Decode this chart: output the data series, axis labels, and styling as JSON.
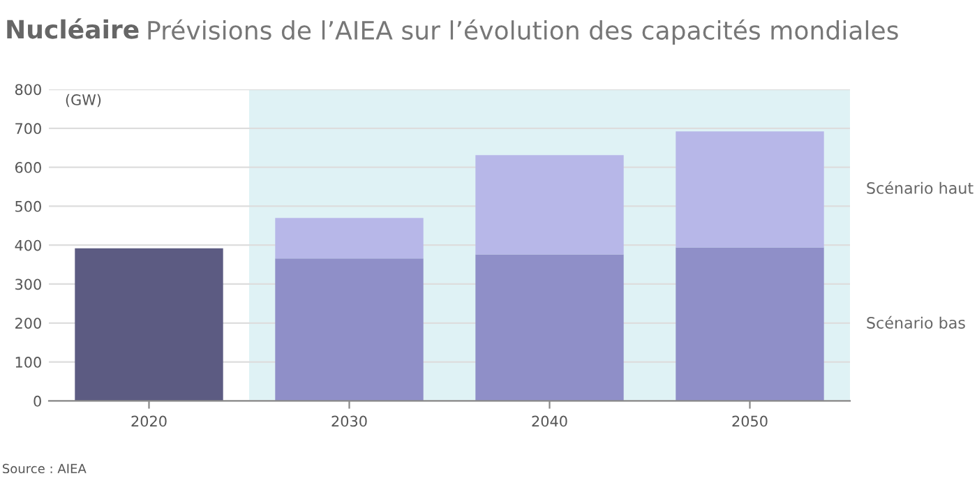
{
  "chart_data": {
    "type": "bar",
    "title": "Nucléaire",
    "subtitle": "Prévisions de l’AIEA sur l’évolution des capacités mondiales",
    "ylabel": "(GW)",
    "categories": [
      "2020",
      "2030",
      "2040",
      "2050"
    ],
    "stacked": true,
    "series": [
      {
        "name": "Scénario bas",
        "color": "#8f8fc8",
        "colors": [
          "#5c5b82",
          "#8f8fc8",
          "#8f8fc8",
          "#8f8fc8"
        ],
        "values": [
          392,
          366,
          376,
          394
        ]
      },
      {
        "name": "Scénario haut",
        "color": "#b7b7e8",
        "values": [
          null,
          104,
          255,
          298
        ]
      }
    ],
    "ylim": [
      0,
      800
    ],
    "yticks": [
      0,
      100,
      200,
      300,
      400,
      500,
      600,
      700,
      800
    ],
    "grid": "y",
    "legend": false,
    "bands": [
      {
        "axis": "x",
        "from": "2030",
        "to": "2050",
        "color": "#dff2f5"
      }
    ],
    "annotations": [
      "Source : AIEA"
    ]
  }
}
